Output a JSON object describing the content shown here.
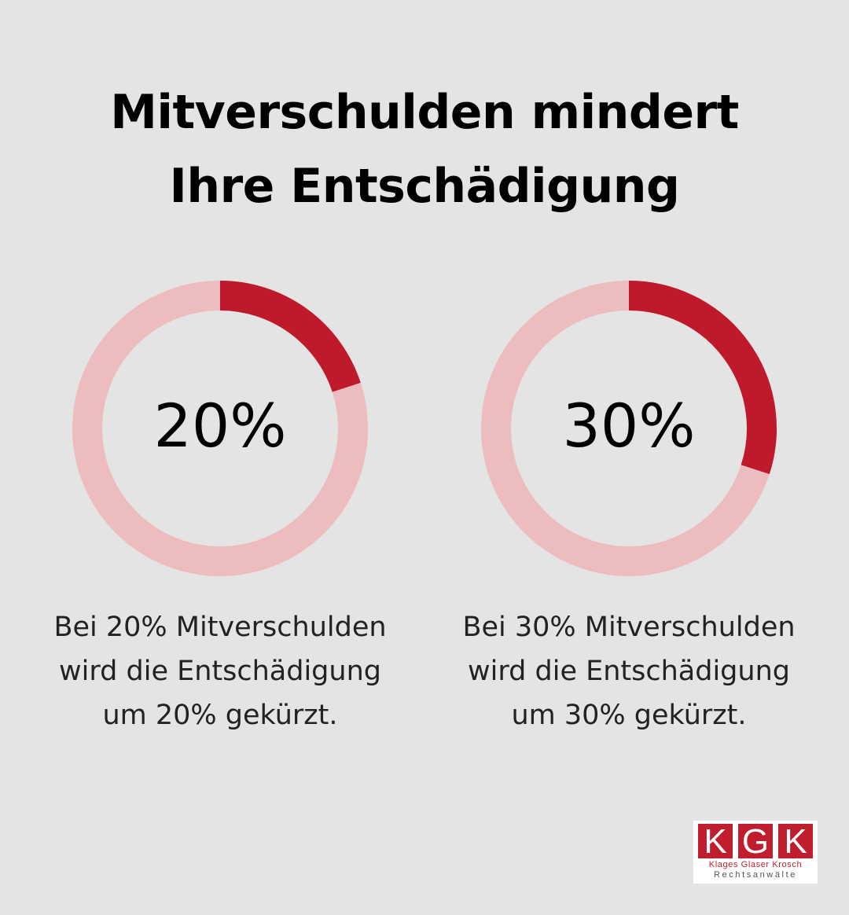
{
  "title": {
    "line1": "Mitverschulden mindert",
    "line2": "Ihre Entschädigung"
  },
  "colors": {
    "background": "#e4e4e4",
    "accent": "#be1a2c",
    "track": "#edbcbf",
    "text": "#000000"
  },
  "chart_data": [
    {
      "type": "pie",
      "variant": "donut",
      "center_label": "20%",
      "value": 20,
      "max": 100,
      "description": [
        "Bei 20% Mitverschulden",
        "wird die Entschädigung",
        "um 20% gekürzt."
      ]
    },
    {
      "type": "pie",
      "variant": "donut",
      "center_label": "30%",
      "value": 30,
      "max": 100,
      "description": [
        "Bei 30% Mitverschulden",
        "wird die Entschädigung",
        "um 30% gekürzt."
      ]
    }
  ],
  "logo": {
    "letters": [
      "K",
      "G",
      "K"
    ],
    "names": "Klages Glaser Krosch",
    "subtitle": "Rechtsanwälte"
  }
}
